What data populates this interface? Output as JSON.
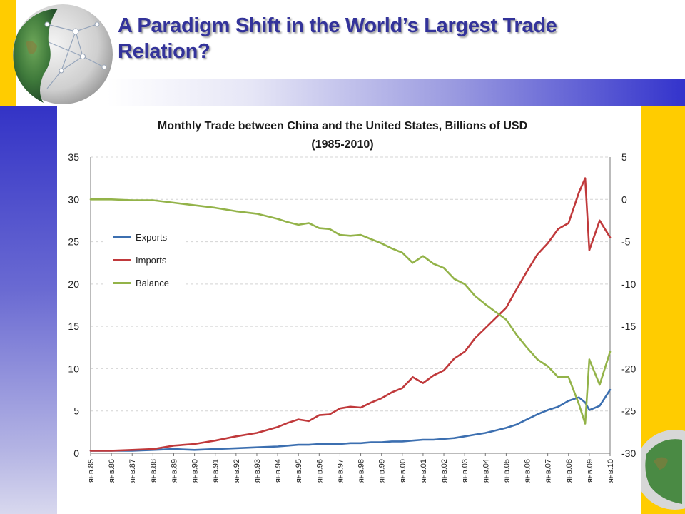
{
  "slide": {
    "title_line1": "A Paradigm Shift in the World’s Largest Trade",
    "title_line2": "Relation?"
  },
  "colors": {
    "title": "#33339a",
    "left_stripe": "#3333c6",
    "right_stripe": "#ffcc00",
    "exports": "#3c6fb0",
    "imports": "#c0393b",
    "balance": "#93b349"
  },
  "icons": [
    "globe-icon"
  ],
  "chart_data": {
    "type": "line",
    "title_line1": "Monthly Trade between China and the United States, Billions of USD",
    "title_line2": "(1985-2010)",
    "legend_position": "upper-left",
    "grid": true,
    "y_left": {
      "min": 0,
      "max": 35,
      "ticks": [
        "0",
        "5",
        "10",
        "15",
        "20",
        "25",
        "30",
        "35"
      ]
    },
    "y_right": {
      "min": -30,
      "max": 5,
      "ticks": [
        "-30",
        "-25",
        "-20",
        "-15",
        "-10",
        "-5",
        "0",
        "5"
      ]
    },
    "x_ticks": [
      "янв.85",
      "янв.86",
      "янв.87",
      "янв.88",
      "янв.89",
      "янв.90",
      "янв.91",
      "янв.92",
      "янв.93",
      "янв.94",
      "янв.95",
      "янв.96",
      "янв.97",
      "янв.98",
      "янв.99",
      "янв.00",
      "янв.01",
      "янв.02",
      "янв.03",
      "янв.04",
      "янв.05",
      "янв.06",
      "янв.07",
      "янв.08",
      "янв.09",
      "янв.10"
    ],
    "x": [
      1985.0,
      1986.0,
      1987.0,
      1988.0,
      1989.0,
      1990.0,
      1991.0,
      1992.0,
      1993.0,
      1994.0,
      1994.5,
      1995.0,
      1995.5,
      1996.0,
      1996.5,
      1997.0,
      1997.5,
      1998.0,
      1998.5,
      1999.0,
      1999.5,
      2000.0,
      2000.5,
      2001.0,
      2001.5,
      2002.0,
      2002.5,
      2003.0,
      2003.5,
      2004.0,
      2004.5,
      2005.0,
      2005.5,
      2006.0,
      2006.5,
      2007.0,
      2007.5,
      2008.0,
      2008.5,
      2008.8,
      2009.0,
      2009.5,
      2010.0
    ],
    "series": [
      {
        "name": "Exports",
        "axis": "left",
        "values": [
          0.3,
          0.3,
          0.3,
          0.4,
          0.5,
          0.4,
          0.5,
          0.6,
          0.7,
          0.8,
          0.9,
          1.0,
          1.0,
          1.1,
          1.1,
          1.1,
          1.2,
          1.2,
          1.3,
          1.3,
          1.4,
          1.4,
          1.5,
          1.6,
          1.6,
          1.7,
          1.8,
          2.0,
          2.2,
          2.4,
          2.7,
          3.0,
          3.4,
          4.0,
          4.6,
          5.1,
          5.5,
          6.2,
          6.6,
          6.0,
          5.1,
          5.6,
          7.5
        ]
      },
      {
        "name": "Imports",
        "axis": "left",
        "values": [
          0.3,
          0.3,
          0.4,
          0.5,
          0.9,
          1.1,
          1.5,
          2.0,
          2.4,
          3.1,
          3.6,
          4.0,
          3.8,
          4.5,
          4.6,
          5.3,
          5.5,
          5.4,
          6.0,
          6.5,
          7.2,
          7.7,
          9.0,
          8.3,
          9.2,
          9.8,
          11.2,
          12.0,
          13.6,
          14.8,
          16.0,
          17.2,
          19.4,
          21.5,
          23.5,
          24.8,
          26.5,
          27.2,
          30.8,
          32.5,
          24.0,
          27.5,
          25.5
        ]
      },
      {
        "name": "Balance",
        "axis": "right",
        "values": [
          0.0,
          0.0,
          -0.1,
          -0.1,
          -0.4,
          -0.7,
          -1.0,
          -1.4,
          -1.7,
          -2.3,
          -2.7,
          -3.0,
          -2.8,
          -3.4,
          -3.5,
          -4.2,
          -4.3,
          -4.2,
          -4.7,
          -5.2,
          -5.8,
          -6.3,
          -7.5,
          -6.7,
          -7.6,
          -8.1,
          -9.4,
          -10.0,
          -11.4,
          -12.4,
          -13.3,
          -14.2,
          -16.0,
          -17.5,
          -18.9,
          -19.7,
          -21.0,
          -21.0,
          -24.2,
          -26.5,
          -18.9,
          -21.9,
          -18.0
        ]
      }
    ]
  }
}
